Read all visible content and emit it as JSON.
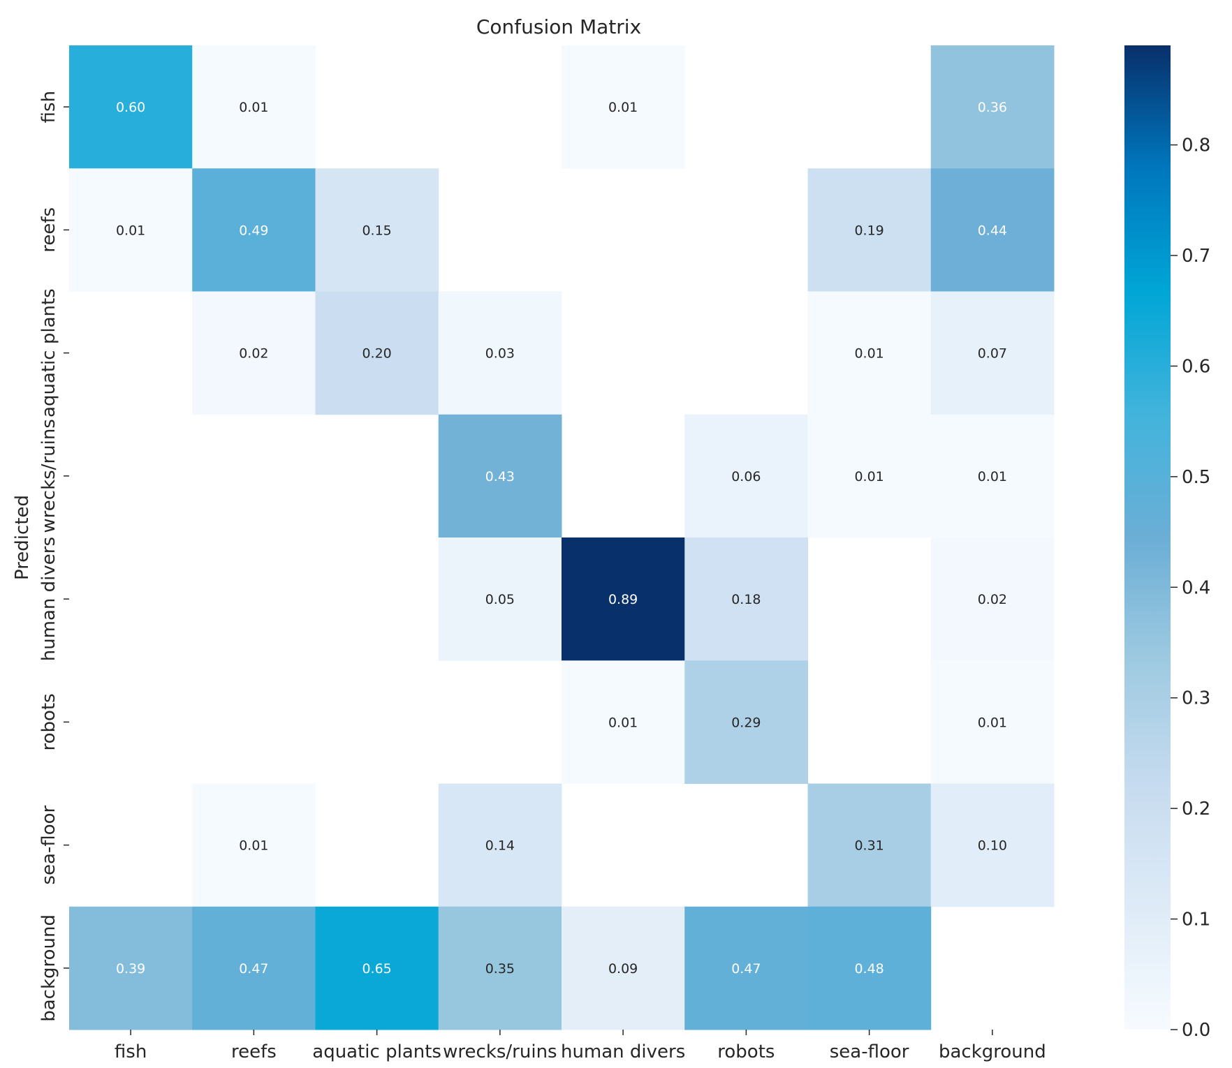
{
  "chart_data": {
    "type": "heatmap",
    "title": "Confusion Matrix",
    "ylabel": "Predicted",
    "xlabel": "",
    "categories": [
      "fish",
      "reefs",
      "aquatic plants",
      "wrecks/ruins",
      "human divers",
      "robots",
      "sea-floor",
      "background"
    ],
    "matrix": [
      [
        0.6,
        0.01,
        null,
        null,
        0.01,
        null,
        null,
        0.36
      ],
      [
        0.01,
        0.49,
        0.15,
        null,
        null,
        null,
        0.19,
        0.44
      ],
      [
        null,
        0.02,
        0.2,
        0.03,
        null,
        null,
        0.01,
        0.07
      ],
      [
        null,
        null,
        null,
        0.43,
        null,
        0.06,
        0.01,
        0.01
      ],
      [
        null,
        null,
        null,
        0.05,
        0.89,
        0.18,
        null,
        0.02
      ],
      [
        null,
        null,
        null,
        null,
        0.01,
        0.29,
        null,
        0.01
      ],
      [
        null,
        0.01,
        null,
        0.14,
        null,
        null,
        0.31,
        0.1
      ],
      [
        0.39,
        0.47,
        0.65,
        0.35,
        0.09,
        0.47,
        0.48,
        null
      ]
    ],
    "colorbar": {
      "min": 0.0,
      "max": 0.89,
      "ticks": [
        0.0,
        0.1,
        0.2,
        0.3,
        0.4,
        0.5,
        0.6,
        0.7,
        0.8
      ],
      "tick_labels": [
        "0.0",
        "0.1",
        "0.2",
        "0.3",
        "0.4",
        "0.5",
        "0.6",
        "0.7",
        "0.8"
      ],
      "colormap": [
        "#f7fbff",
        "#deebf7",
        "#c6dbef",
        "#9ecae1",
        "#6baed6",
        "#42b4dc",
        "#00a6d6",
        "#0077bd",
        "#08306b"
      ]
    },
    "text_colors": {
      "dark": "#262626",
      "light": "#ffffff"
    }
  }
}
